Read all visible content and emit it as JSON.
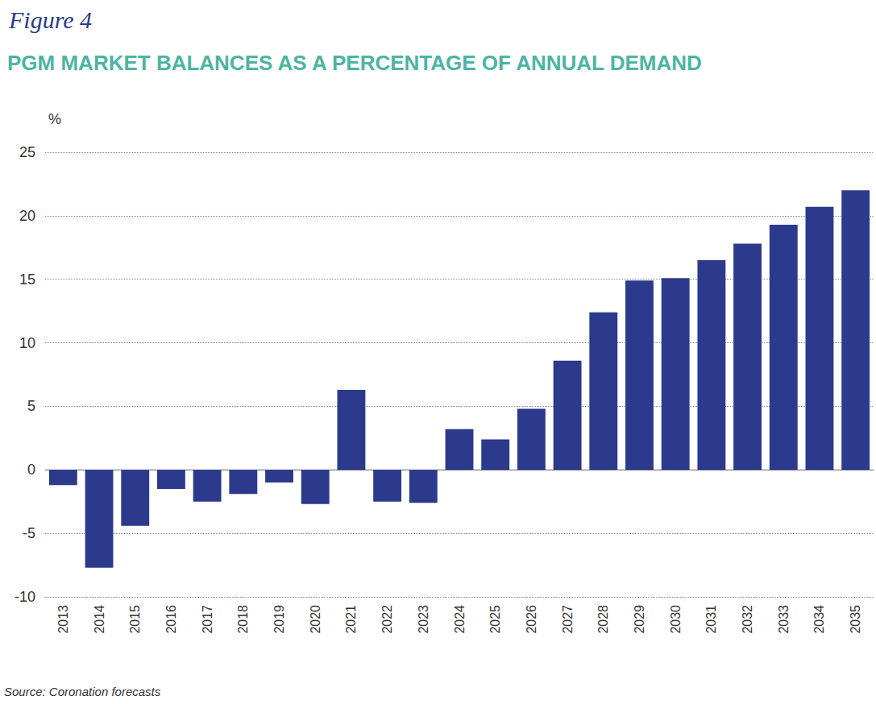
{
  "chart_data": {
    "type": "bar",
    "subtitle": "Figure 4",
    "title": "PGM MARKET BALANCES AS A PERCENTAGE OF ANNUAL DEMAND",
    "y_label": "%",
    "source": "Source: Coronation forecasts",
    "categories": [
      "2013",
      "2014",
      "2015",
      "2016",
      "2017",
      "2018",
      "2019",
      "2020",
      "2021",
      "2022",
      "2023",
      "2024",
      "2025",
      "2026",
      "2027",
      "2028",
      "2029",
      "2030",
      "2031",
      "2032",
      "2033",
      "2034",
      "2035"
    ],
    "values": [
      -1.2,
      -7.7,
      -4.4,
      -1.5,
      -2.5,
      -1.9,
      -1.0,
      -2.7,
      6.3,
      -2.5,
      -2.6,
      3.2,
      2.4,
      4.8,
      8.6,
      12.4,
      14.9,
      15.1,
      16.5,
      17.8,
      19.3,
      20.7,
      22.0
    ],
    "color": "#2b3a8c",
    "ylim": [
      -10,
      25
    ],
    "yticks": [
      -10,
      -5,
      0,
      5,
      10,
      15,
      20,
      25
    ],
    "grid": true
  }
}
